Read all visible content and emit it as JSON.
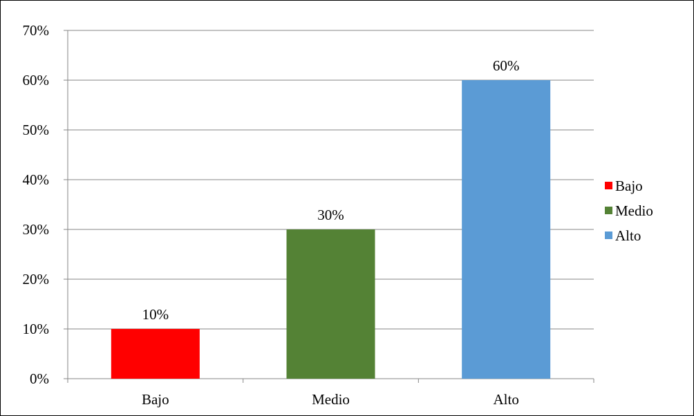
{
  "chart_data": {
    "type": "bar",
    "categories": [
      "Bajo",
      "Medio",
      "Alto"
    ],
    "values": [
      10,
      30,
      60
    ],
    "value_labels": [
      "10%",
      "30%",
      "60%"
    ],
    "colors": [
      "#ff0000",
      "#548235",
      "#5b9bd5"
    ],
    "ylim": [
      0,
      70
    ],
    "yticks": [
      0,
      10,
      20,
      30,
      40,
      50,
      60,
      70
    ],
    "ytick_labels": [
      "0%",
      "10%",
      "20%",
      "30%",
      "40%",
      "50%",
      "60%",
      "70%"
    ],
    "grid": true,
    "legend": {
      "placement": "right",
      "entries": [
        "Bajo",
        "Medio",
        "Alto"
      ]
    },
    "title": "",
    "xlabel": "",
    "ylabel": ""
  }
}
